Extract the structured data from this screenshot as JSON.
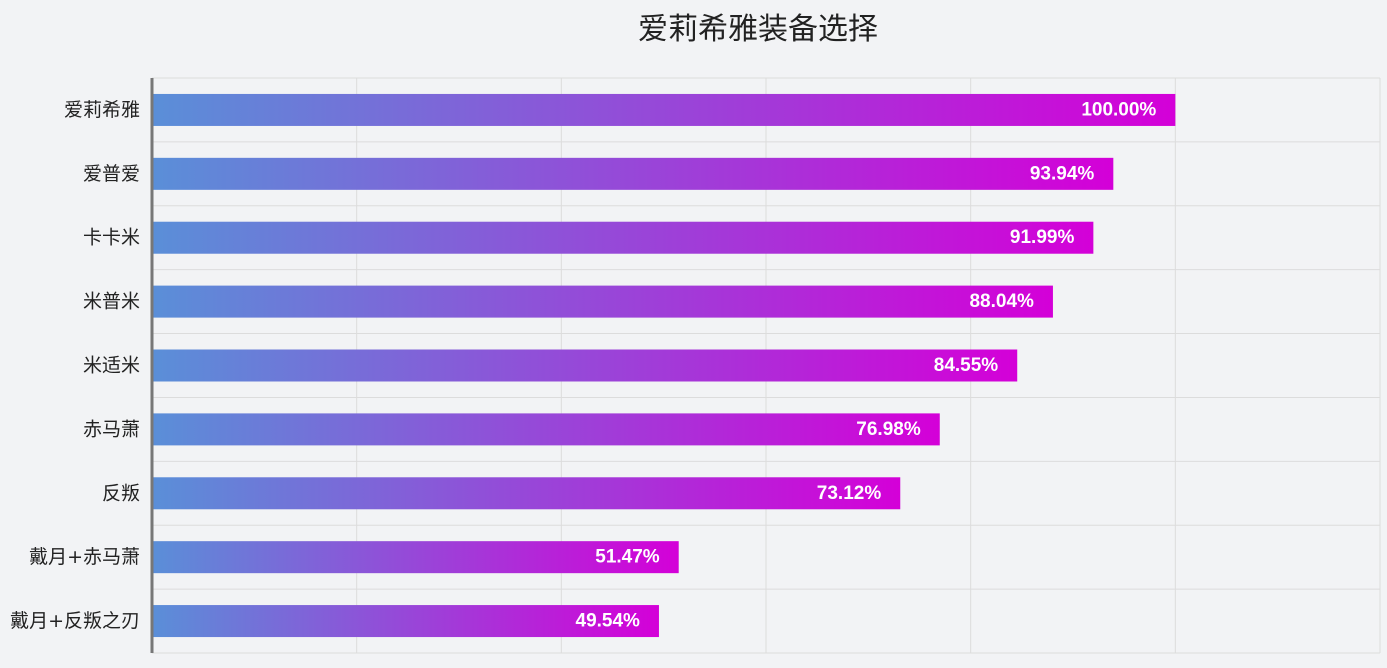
{
  "chart_data": {
    "type": "bar",
    "orientation": "horizontal",
    "title": "爱莉希雅装备选择",
    "xlabel": "",
    "ylabel": "",
    "categories": [
      "爱莉希雅",
      "爱普爱",
      "卡卡米",
      "米普米",
      "米适米",
      "赤马萧",
      "反叛",
      "戴月+赤马萧",
      "戴月+反叛之刃"
    ],
    "values": [
      100.0,
      93.94,
      91.99,
      88.04,
      84.55,
      76.98,
      73.12,
      51.47,
      49.54
    ],
    "value_labels": [
      "100.00%",
      "93.94%",
      "91.99%",
      "88.04%",
      "84.55%",
      "76.98%",
      "73.12%",
      "51.47%",
      "49.54%"
    ],
    "xlim": [
      0,
      120
    ],
    "grid": true,
    "bar_gradient": [
      "#5a8fd8",
      "#d400d8"
    ]
  }
}
